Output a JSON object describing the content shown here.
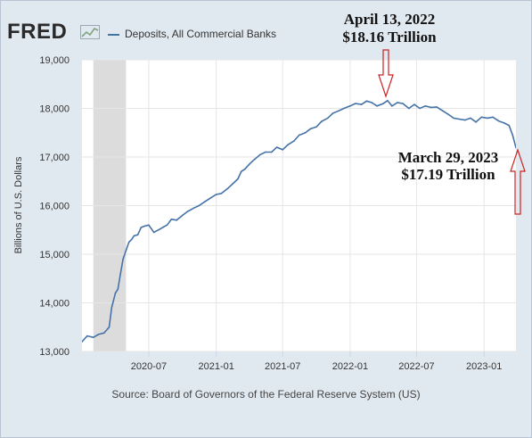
{
  "brand": {
    "logo_text": "FRED"
  },
  "colors": {
    "series": "#4572a7",
    "plot_bg": "#ffffff",
    "frame_bg": "#e1e9f0",
    "recession": "#dcdcdc",
    "arrow": "#cc2222"
  },
  "source_text": "Source: Board of Governors of the Federal Reserve System (US)",
  "annotations": {
    "peak_date": "April 13, 2022",
    "peak_value": "$18.16 Trillion",
    "last_date": "March 29, 2023",
    "last_value": "$17.19 Trillion"
  },
  "chart_data": {
    "type": "line",
    "title": "",
    "xlabel": "",
    "ylabel": "Billions of U.S. Dollars",
    "ylim": [
      13000,
      19000
    ],
    "xlim": [
      "2020-01-01",
      "2023-03-29"
    ],
    "yticks": [
      13000,
      14000,
      15000,
      16000,
      17000,
      18000,
      19000
    ],
    "ytick_labels": [
      "13,000",
      "14,000",
      "15,000",
      "16,000",
      "17,000",
      "18,000",
      "19,000"
    ],
    "xticks": [
      "2020-07-01",
      "2021-01-01",
      "2021-07-01",
      "2022-01-01",
      "2022-07-01",
      "2023-01-01"
    ],
    "xtick_labels": [
      "2020-07",
      "2021-01",
      "2021-07",
      "2022-01",
      "2022-07",
      "2023-01"
    ],
    "grid": true,
    "legend": "top-left",
    "recession_shading": [
      [
        "2020-02-01",
        "2020-04-30"
      ]
    ],
    "series": [
      {
        "name": "Deposits, All Commercial Banks",
        "x": [
          "2020-01-01",
          "2020-01-15",
          "2020-02-01",
          "2020-02-15",
          "2020-03-01",
          "2020-03-15",
          "2020-03-22",
          "2020-04-01",
          "2020-04-08",
          "2020-04-15",
          "2020-04-22",
          "2020-05-01",
          "2020-05-08",
          "2020-05-15",
          "2020-05-22",
          "2020-06-01",
          "2020-06-10",
          "2020-06-20",
          "2020-07-01",
          "2020-07-15",
          "2020-08-01",
          "2020-08-10",
          "2020-08-20",
          "2020-09-01",
          "2020-09-15",
          "2020-10-01",
          "2020-10-15",
          "2020-11-01",
          "2020-11-15",
          "2020-12-01",
          "2020-12-15",
          "2021-01-01",
          "2021-01-15",
          "2021-02-01",
          "2021-02-15",
          "2021-03-01",
          "2021-03-10",
          "2021-03-20",
          "2021-04-01",
          "2021-04-15",
          "2021-05-01",
          "2021-05-15",
          "2021-06-01",
          "2021-06-15",
          "2021-07-01",
          "2021-07-15",
          "2021-08-01",
          "2021-08-15",
          "2021-09-01",
          "2021-09-15",
          "2021-10-01",
          "2021-10-15",
          "2021-11-01",
          "2021-11-15",
          "2021-12-01",
          "2021-12-15",
          "2022-01-01",
          "2022-01-15",
          "2022-02-01",
          "2022-02-15",
          "2022-03-01",
          "2022-03-15",
          "2022-04-01",
          "2022-04-13",
          "2022-04-25",
          "2022-05-10",
          "2022-05-25",
          "2022-06-10",
          "2022-06-25",
          "2022-07-10",
          "2022-07-25",
          "2022-08-10",
          "2022-08-25",
          "2022-09-10",
          "2022-09-25",
          "2022-10-10",
          "2022-10-25",
          "2022-11-10",
          "2022-11-25",
          "2022-12-10",
          "2022-12-25",
          "2023-01-10",
          "2023-01-25",
          "2023-02-10",
          "2023-02-25",
          "2023-03-10",
          "2023-03-20",
          "2023-03-29"
        ],
        "y": [
          13200,
          13320,
          13290,
          13350,
          13380,
          13500,
          13900,
          14200,
          14280,
          14600,
          14900,
          15100,
          15250,
          15300,
          15380,
          15400,
          15550,
          15580,
          15600,
          15450,
          15520,
          15560,
          15600,
          15720,
          15700,
          15800,
          15880,
          15950,
          16000,
          16080,
          16150,
          16230,
          16250,
          16350,
          16450,
          16550,
          16700,
          16750,
          16850,
          16950,
          17050,
          17100,
          17100,
          17200,
          17150,
          17250,
          17330,
          17450,
          17500,
          17580,
          17620,
          17730,
          17800,
          17900,
          17950,
          18000,
          18050,
          18100,
          18080,
          18150,
          18120,
          18050,
          18100,
          18160,
          18050,
          18120,
          18100,
          18000,
          18080,
          18000,
          18050,
          18020,
          18030,
          17950,
          17880,
          17800,
          17780,
          17760,
          17800,
          17720,
          17820,
          17800,
          17820,
          17740,
          17700,
          17650,
          17450,
          17190
        ]
      }
    ]
  }
}
